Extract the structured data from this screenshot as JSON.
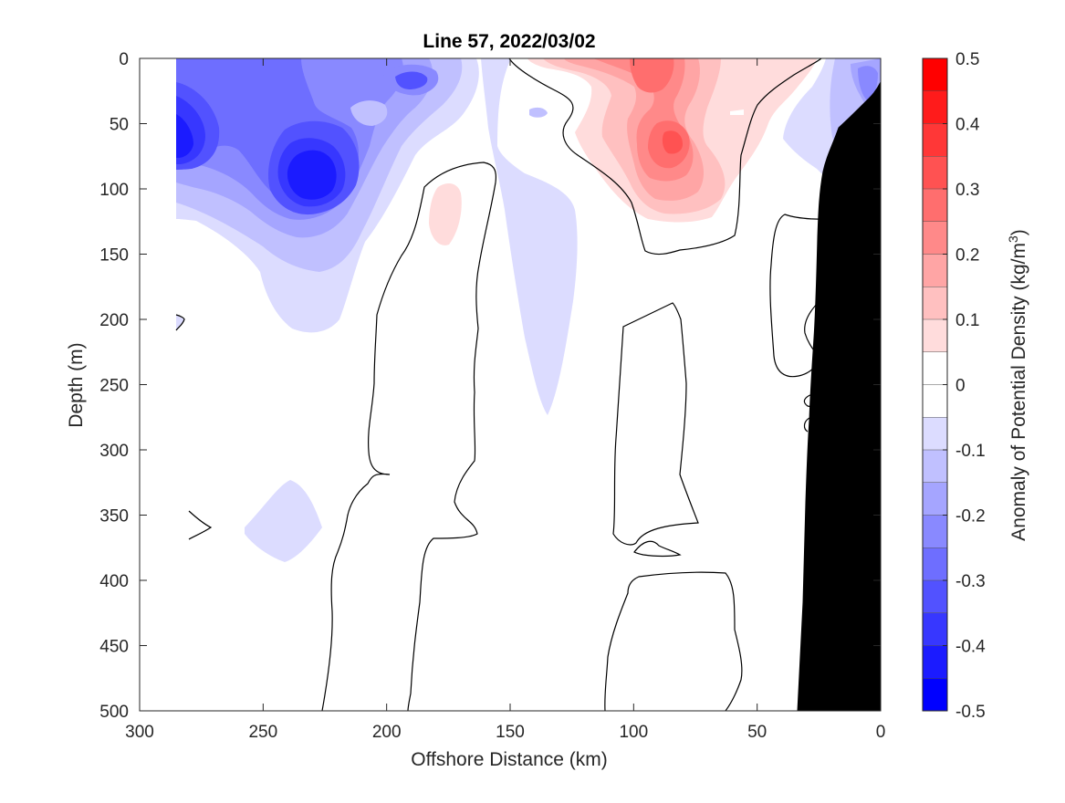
{
  "chart_data": {
    "type": "heatmap",
    "title": "Line 57, 2022/03/02",
    "xlabel": "Offshore Distance (km)",
    "ylabel": "Depth (m)",
    "xlim": [
      300,
      0
    ],
    "ylim": [
      500,
      0
    ],
    "x_direction": "reversed",
    "y_direction": "reversed (depth increases downward)",
    "x_ticks": [
      "300",
      "250",
      "200",
      "150",
      "100",
      "50",
      "0"
    ],
    "y_ticks": [
      "0",
      "50",
      "100",
      "150",
      "200",
      "250",
      "300",
      "350",
      "400",
      "450",
      "500"
    ],
    "colorbar": {
      "label_prefix": "Anomaly of Potential Density (kg/m",
      "label_superscript": "3",
      "label_suffix": ")",
      "range": [
        -0.5,
        0.5
      ],
      "levels": [
        -0.5,
        -0.45,
        -0.4,
        -0.35,
        -0.3,
        -0.25,
        -0.2,
        -0.15,
        -0.1,
        -0.05,
        0,
        0.05,
        0.1,
        0.15,
        0.2,
        0.25,
        0.3,
        0.35,
        0.4,
        0.45,
        0.5
      ],
      "tick_labels": [
        "0.5",
        "0.4",
        "0.3",
        "0.2",
        "0.1",
        "0",
        "-0.1",
        "-0.2",
        "-0.3",
        "-0.4",
        "-0.5"
      ],
      "colors": [
        "#0000ff",
        "#1b1bff",
        "#3737ff",
        "#5252ff",
        "#6e6eff",
        "#8989ff",
        "#a5a5ff",
        "#c0c0ff",
        "#dcdcff",
        "#ffffff",
        "#ffffff",
        "#ffdcdc",
        "#ffc0c0",
        "#ffa5a5",
        "#ff8989",
        "#ff6e6e",
        "#ff5252",
        "#ff3737",
        "#ff1b1b",
        "#ff0000"
      ]
    },
    "features": [
      {
        "kind": "negative_anomaly_center",
        "x_km": 230,
        "depth_m": 90,
        "value": -0.45
      },
      {
        "kind": "negative_anomaly_center",
        "x_km": 282,
        "depth_m": 55,
        "value": -0.4
      },
      {
        "kind": "negative_anomaly_center",
        "x_km": 195,
        "depth_m": 20,
        "value": -0.3
      },
      {
        "kind": "negative_anomaly_center",
        "x_km": 8,
        "depth_m": 30,
        "value": -0.2
      },
      {
        "kind": "positive_anomaly_center",
        "x_km": 85,
        "depth_m": 60,
        "value": 0.3
      },
      {
        "kind": "positive_anomaly_center",
        "x_km": 90,
        "depth_m": 10,
        "value": 0.25
      },
      {
        "kind": "positive_anomaly_center",
        "x_km": 177,
        "depth_m": 120,
        "value": 0.1
      }
    ],
    "bathymetry": {
      "color": "#000000",
      "bottom_profile": [
        [
          0,
          35
        ],
        [
          5,
          70
        ],
        [
          15,
          120
        ],
        [
          25,
          150
        ],
        [
          30,
          190
        ],
        [
          32,
          300
        ],
        [
          33,
          400
        ],
        [
          34,
          500
        ]
      ]
    },
    "data_coverage_x_km": [
      0,
      286
    ],
    "contour_color": "#000000"
  }
}
